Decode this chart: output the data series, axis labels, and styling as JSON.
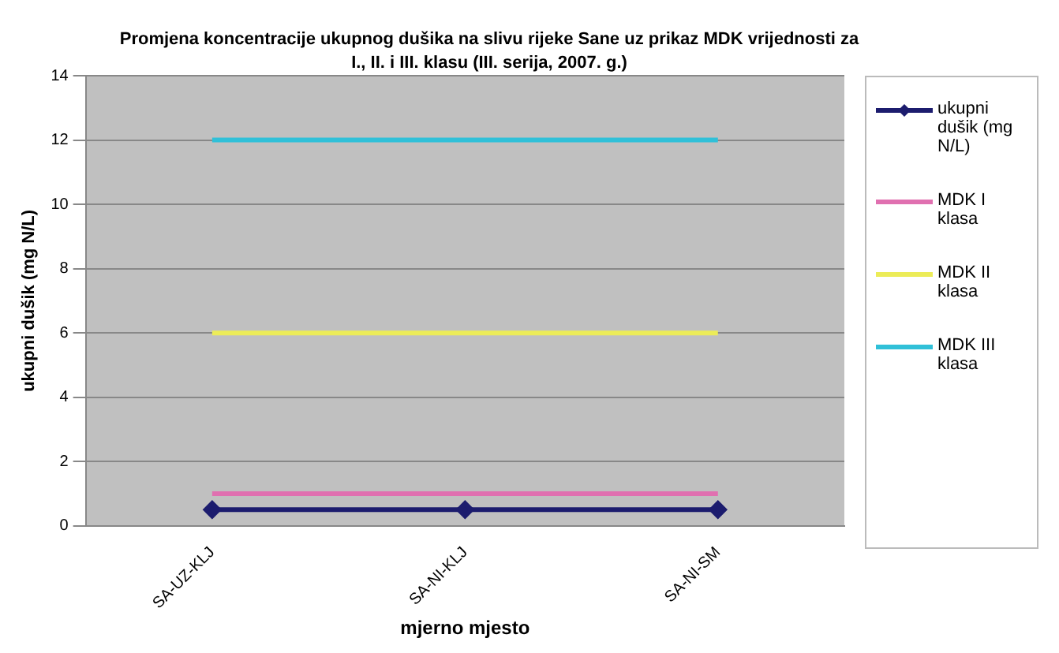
{
  "chart_data": {
    "type": "line",
    "title": "Promjena koncentracije ukupnog dušika na slivu rijeke Sane uz prikaz MDK vrijednosti za I., II. i III. klasu (III. serija, 2007. g.)",
    "xlabel": "mjerno mjesto",
    "ylabel": "ukupni dušik (mg N/L)",
    "categories": [
      "SA-UZ-KLJ",
      "SA-NI-KLJ",
      "SA-NI-SM"
    ],
    "series": [
      {
        "name": "ukupni dušik (mg N/L)",
        "color": "#1c1c6e",
        "values": [
          0.5,
          0.5,
          0.5
        ],
        "marker": "diamond"
      },
      {
        "name": "MDK I klasa",
        "color": "#e070b0",
        "values": [
          1,
          1,
          1
        ],
        "marker": "none"
      },
      {
        "name": "MDK II klasa",
        "color": "#ecec58",
        "values": [
          6,
          6,
          6
        ],
        "marker": "none"
      },
      {
        "name": "MDK III klasa",
        "color": "#30c0d8",
        "values": [
          12,
          12,
          12
        ],
        "marker": "none"
      }
    ],
    "ylim": [
      0,
      14
    ],
    "yticks": [
      0,
      2,
      4,
      6,
      8,
      10,
      12,
      14
    ],
    "grid": "y",
    "legend": "right"
  }
}
